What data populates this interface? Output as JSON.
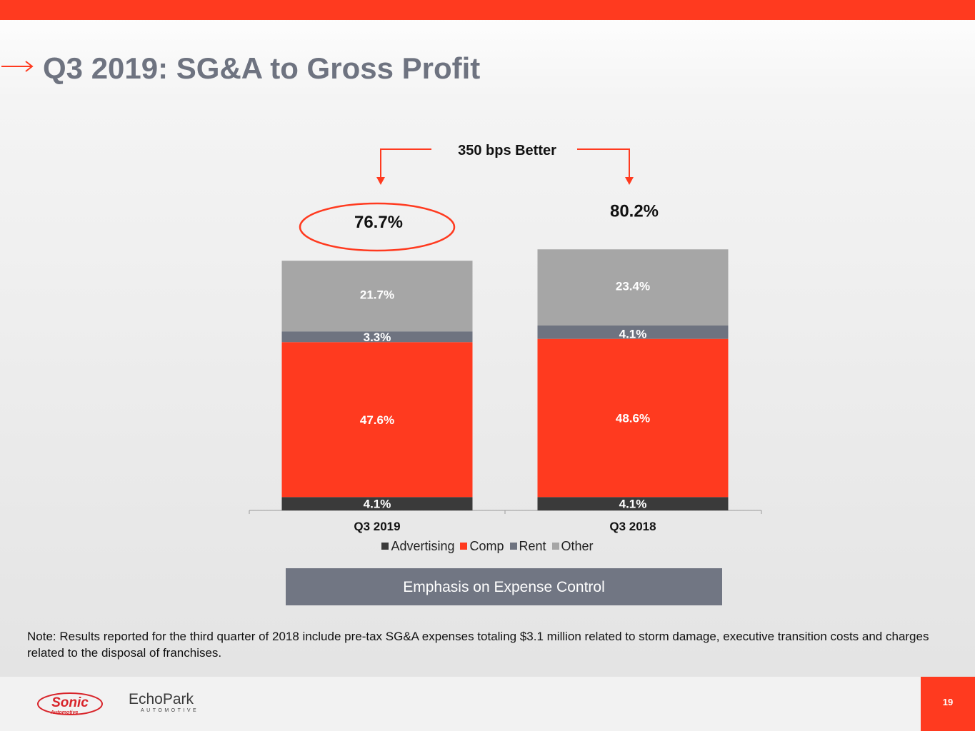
{
  "slide": {
    "title": "Q3 2019: SG&A to Gross Profit",
    "banner": "Emphasis on Expense Control",
    "note": "Note: Results reported for the third quarter of 2018 include pre-tax SG&A expenses totaling $3.1 million related to storm damage, executive transition costs and charges related to the disposal of franchises.",
    "page_number": "19",
    "logos": {
      "sonic": "Sonic",
      "sonic_sub": "Automotive",
      "echo_a": "Echo",
      "echo_b": "Park",
      "echo_sub": "AUTOMOTIVE"
    }
  },
  "colors": {
    "accent": "#ff3a1f",
    "advertising": "#3a3a3a",
    "comp": "#ff3a1f",
    "rent": "#6e7380",
    "other": "#a6a6a6",
    "banner": "#717683"
  },
  "chart_data": {
    "type": "bar",
    "stacked": true,
    "categories": [
      "Q3 2019",
      "Q3 2018"
    ],
    "series": [
      {
        "name": "Advertising",
        "values": [
          4.1,
          4.1
        ],
        "labels": [
          "4.1%",
          "4.1%"
        ]
      },
      {
        "name": "Comp",
        "values": [
          47.6,
          48.6
        ],
        "labels": [
          "47.6%",
          "48.6%"
        ]
      },
      {
        "name": "Rent",
        "values": [
          3.3,
          4.1
        ],
        "labels": [
          "3.3%",
          "4.1%"
        ]
      },
      {
        "name": "Other",
        "values": [
          21.7,
          23.4
        ],
        "labels": [
          "21.7%",
          "23.4%"
        ]
      }
    ],
    "totals": [
      76.7,
      80.2
    ],
    "total_labels": [
      "76.7%",
      "80.2%"
    ],
    "annotation": "350 bps Better",
    "highlighted_total": "Q3 2019",
    "legend_position": "bottom",
    "grid": false
  }
}
